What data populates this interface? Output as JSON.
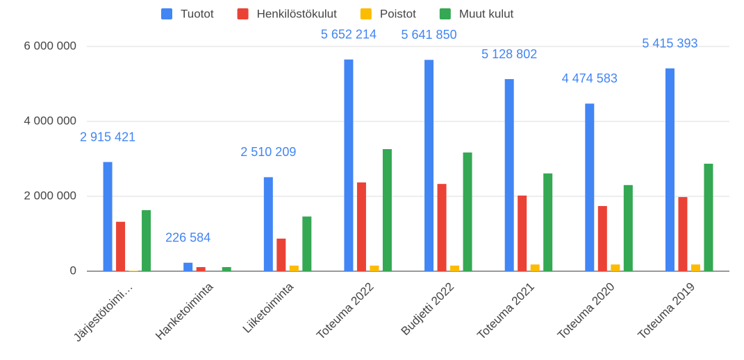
{
  "chart_data": {
    "type": "bar",
    "categories": [
      "Järjestötoimi…",
      "Hanketoiminta",
      "Liiketoiminta",
      "Toteuma 2022",
      "Budjetti 2022",
      "Toteuma 2021",
      "Toteuma 2020",
      "Toteuma 2019"
    ],
    "series": [
      {
        "name": "Tuotot",
        "color": "#4285f4",
        "values": [
          2915421,
          226584,
          2510209,
          5652214,
          5641850,
          5128802,
          4474583,
          5415393
        ],
        "value_labels": [
          "2 915 421",
          "226 584",
          "2 510 209",
          "5 652 214",
          "5 641 850",
          "5 128 802",
          "4 474 583",
          "5 415 393"
        ]
      },
      {
        "name": "Henkilöstökulut",
        "color": "#ea4335",
        "values": [
          1320000,
          110000,
          870000,
          2370000,
          2330000,
          2020000,
          1740000,
          1980000
        ]
      },
      {
        "name": "Poistot",
        "color": "#fbbc04",
        "values": [
          10000,
          0,
          150000,
          150000,
          150000,
          180000,
          180000,
          180000
        ]
      },
      {
        "name": "Muut kulut",
        "color": "#34a853",
        "values": [
          1630000,
          110000,
          1460000,
          3260000,
          3170000,
          2610000,
          2300000,
          2870000
        ]
      }
    ],
    "ylim": [
      0,
      6500000
    ],
    "yticks": [
      0,
      {
        "value": 2000000,
        "label": "2 000 000"
      },
      {
        "value": 4000000,
        "label": "4 000 000"
      },
      {
        "value": 6000000,
        "label": "6 000 000"
      }
    ],
    "grid": true,
    "legend": "top"
  }
}
